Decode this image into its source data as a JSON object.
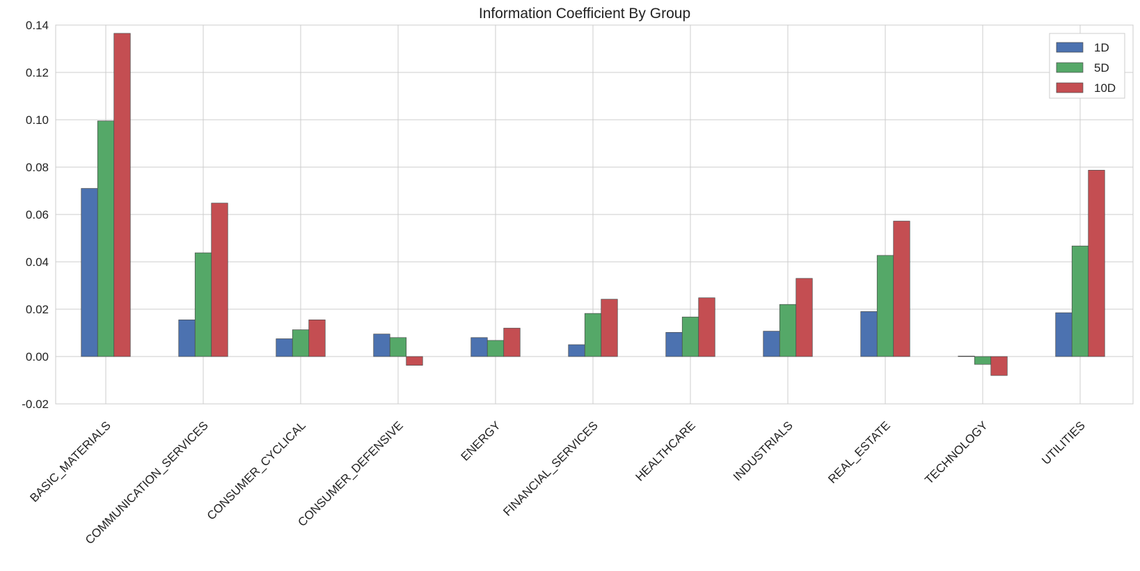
{
  "chart_data": {
    "type": "bar",
    "title": "Information Coefficient By Group",
    "xlabel": "",
    "ylabel": "",
    "ylim": [
      -0.02,
      0.14
    ],
    "yticks": [
      "-0.02",
      "0.00",
      "0.02",
      "0.04",
      "0.06",
      "0.08",
      "0.10",
      "0.12",
      "0.14"
    ],
    "grid": true,
    "legend_position": "top-right",
    "categories": [
      "BASIC_MATERIALS",
      "COMMUNICATION_SERVICES",
      "CONSUMER_CYCLICAL",
      "CONSUMER_DEFENSIVE",
      "ENERGY",
      "FINANCIAL_SERVICES",
      "HEALTHCARE",
      "INDUSTRIALS",
      "REAL_ESTATE",
      "TECHNOLOGY",
      "UTILITIES"
    ],
    "series": [
      {
        "name": "1D",
        "color": "#4c72b0",
        "values": [
          0.071,
          0.0155,
          0.0075,
          0.0095,
          0.008,
          0.005,
          0.0102,
          0.0107,
          0.019,
          0.0002,
          0.0185
        ]
      },
      {
        "name": "5D",
        "color": "#55a868",
        "values": [
          0.0995,
          0.0438,
          0.0113,
          0.008,
          0.0068,
          0.0182,
          0.0167,
          0.022,
          0.0427,
          -0.0033,
          0.0467
        ]
      },
      {
        "name": "10D",
        "color": "#c44e52",
        "values": [
          0.1365,
          0.0648,
          0.0155,
          -0.0037,
          0.012,
          0.0242,
          0.0248,
          0.033,
          0.0572,
          -0.008,
          0.0787
        ]
      }
    ]
  }
}
